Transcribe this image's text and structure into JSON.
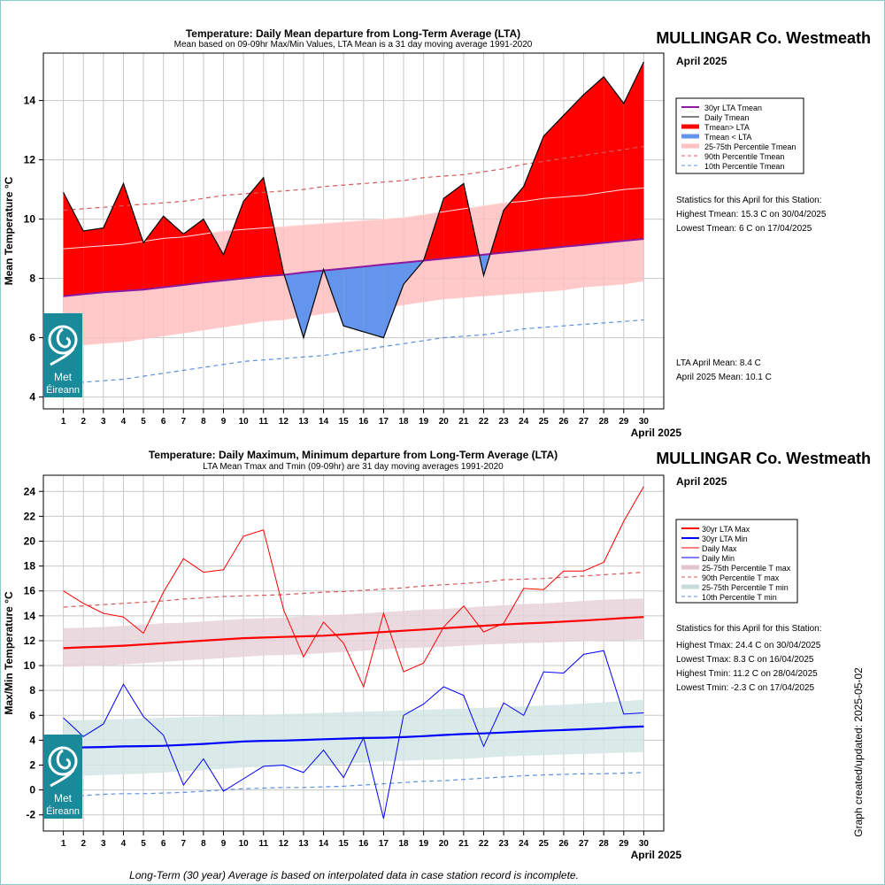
{
  "station": "MULLINGAR Co. Westmeath",
  "period": "April 2025",
  "logo_text": [
    "Met",
    "Éireann"
  ],
  "updated": "Graph created/updated:  2025-05-02",
  "footnote": "Long-Term (30 year) Average is based on interpolated data in case station record is incomplete.",
  "colors": {
    "above": "#ff0000",
    "below": "#6495ed",
    "lta_mean": "#8b1aa0",
    "pct_band_mean": "#ffc0c0",
    "pct90": "#d45a5a",
    "pct10": "#5b8fe0",
    "max": "#ff0000",
    "min": "#0000ff",
    "band_max": "#e8d2da",
    "band_min": "#d4e6e4",
    "logo": "#1a8a9a"
  },
  "top": {
    "title": "Temperature: Daily Mean departure from Long-Term Average (LTA)",
    "subtitle": "Mean based on 09-09hr Max/Min Values, LTA Mean is a 31 day moving average 1991-2020",
    "legend": [
      "30yr LTA Tmean",
      "Daily Tmean",
      "Tmean> LTA",
      "Tmean < LTA",
      "25-75th Percentile Tmean",
      "90th Percentile Tmean",
      "10th Percentile Tmean"
    ],
    "stats_heading": "Statistics for this April for this Station:",
    "stats": [
      "Highest Tmean: 15.3 C on 30/04/2025",
      "Lowest Tmean: 6 C on 17/04/2025"
    ],
    "means": [
      "LTA April Mean: 8.4 C",
      "April 2025 Mean: 10.1 C"
    ]
  },
  "bottom": {
    "title": "Temperature: Daily Maximum, Minimum departure from Long-Term Average (LTA)",
    "subtitle": "LTA Mean Tmax and Tmin (09-09hr) are 31 day moving averages 1991-2020",
    "legend": [
      "30yr LTA Max",
      "30yr LTA Min",
      "Daily Max",
      "Daily Min",
      "25-75th Percentile T max",
      "90th Percentile T max",
      "25-75th Percentile T min",
      "10th Percentile T min"
    ],
    "stats_heading": "Statistics for this April for this Station:",
    "stats": [
      "Highest Tmax: 24.4 C on 30/04/2025",
      "Lowest Tmax: 8.3 C on 16/04/2025",
      "Highest Tmin: 11.2 C on 28/04/2025",
      "Lowest Tmin: -2.3 C on 17/04/2025"
    ]
  },
  "chart_data": [
    {
      "type": "line",
      "title": "Temperature: Daily Mean departure from Long-Term Average (LTA)",
      "ylabel": "Mean Temperature °C",
      "xlabel": "April 2025",
      "ylim": [
        3.6,
        15.6
      ],
      "yticks": [
        4,
        6,
        8,
        10,
        12,
        14
      ],
      "x": [
        1,
        2,
        3,
        4,
        5,
        6,
        7,
        8,
        9,
        10,
        11,
        12,
        13,
        14,
        15,
        16,
        17,
        18,
        19,
        20,
        21,
        22,
        23,
        24,
        25,
        26,
        27,
        28,
        29,
        30
      ],
      "grid": true,
      "legend_position": "right",
      "series": [
        {
          "name": "Daily Tmean",
          "values": [
            10.9,
            9.6,
            9.7,
            11.2,
            9.2,
            10.1,
            9.5,
            10.0,
            8.8,
            10.6,
            11.4,
            8.2,
            6.0,
            8.3,
            6.4,
            6.2,
            6.0,
            7.8,
            8.6,
            10.7,
            11.2,
            8.1,
            10.3,
            11.1,
            12.8,
            13.5,
            14.2,
            14.8,
            13.9,
            15.3
          ]
        },
        {
          "name": "30yr LTA Tmean",
          "values": [
            7.4,
            7.47,
            7.53,
            7.58,
            7.62,
            7.7,
            7.78,
            7.86,
            7.93,
            8.0,
            8.07,
            8.12,
            8.2,
            8.27,
            8.33,
            8.4,
            8.47,
            8.53,
            8.6,
            8.67,
            8.73,
            8.8,
            8.87,
            8.93,
            9.0,
            9.07,
            9.13,
            9.2,
            9.27,
            9.33
          ]
        },
        {
          "name": "90th Percentile Tmean",
          "values": [
            10.3,
            10.35,
            10.4,
            10.45,
            10.5,
            10.55,
            10.6,
            10.7,
            10.8,
            10.85,
            10.9,
            10.95,
            11.0,
            11.1,
            11.15,
            11.2,
            11.25,
            11.3,
            11.4,
            11.45,
            11.5,
            11.6,
            11.7,
            11.85,
            11.95,
            12.05,
            12.15,
            12.25,
            12.35,
            12.45
          ]
        },
        {
          "name": "10th Percentile Tmean",
          "values": [
            4.45,
            4.5,
            4.55,
            4.6,
            4.7,
            4.8,
            4.9,
            5.0,
            5.1,
            5.2,
            5.25,
            5.3,
            5.35,
            5.4,
            5.5,
            5.6,
            5.7,
            5.8,
            5.9,
            6.0,
            6.05,
            6.1,
            6.2,
            6.3,
            6.35,
            6.4,
            6.45,
            6.5,
            6.55,
            6.6
          ]
        },
        {
          "name": "25-75th Percentile Tmean",
          "low": [
            5.7,
            5.75,
            5.8,
            5.85,
            5.95,
            6.05,
            6.15,
            6.25,
            6.35,
            6.45,
            6.55,
            6.6,
            6.7,
            6.8,
            6.9,
            6.95,
            7.0,
            7.1,
            7.2,
            7.3,
            7.35,
            7.4,
            7.45,
            7.5,
            7.55,
            7.6,
            7.7,
            7.75,
            7.8,
            7.9
          ],
          "high": [
            9.0,
            9.05,
            9.1,
            9.15,
            9.25,
            9.35,
            9.4,
            9.5,
            9.6,
            9.65,
            9.7,
            9.75,
            9.8,
            9.85,
            9.9,
            9.95,
            10.0,
            10.05,
            10.15,
            10.25,
            10.35,
            10.45,
            10.55,
            10.6,
            10.7,
            10.75,
            10.8,
            10.9,
            11.0,
            11.05
          ]
        }
      ]
    },
    {
      "type": "line",
      "title": "Temperature: Daily Maximum, Minimum departure from Long-Term Average (LTA)",
      "ylabel": "Max/Min Temperature °C",
      "xlabel": "April 2025",
      "ylim": [
        -3.3,
        25.3
      ],
      "yticks": [
        -2,
        0,
        2,
        4,
        6,
        8,
        10,
        12,
        14,
        16,
        18,
        20,
        22,
        24
      ],
      "x": [
        1,
        2,
        3,
        4,
        5,
        6,
        7,
        8,
        9,
        10,
        11,
        12,
        13,
        14,
        15,
        16,
        17,
        18,
        19,
        20,
        21,
        22,
        23,
        24,
        25,
        26,
        27,
        28,
        29,
        30
      ],
      "grid": true,
      "legend_position": "right",
      "series": [
        {
          "name": "Daily Max",
          "values": [
            16.0,
            15.0,
            14.2,
            13.9,
            12.6,
            15.9,
            18.6,
            17.5,
            17.7,
            20.4,
            20.9,
            14.5,
            10.7,
            13.5,
            11.8,
            8.3,
            14.2,
            9.5,
            10.2,
            13.1,
            14.8,
            12.7,
            13.4,
            16.2,
            16.1,
            17.6,
            17.6,
            18.3,
            21.6,
            24.4
          ]
        },
        {
          "name": "Daily Min",
          "values": [
            5.8,
            4.3,
            5.3,
            8.5,
            5.9,
            4.4,
            0.4,
            2.5,
            -0.1,
            0.9,
            1.9,
            2.0,
            1.4,
            3.2,
            1.0,
            4.2,
            -2.3,
            6.0,
            6.9,
            8.3,
            7.6,
            3.5,
            7.0,
            6.0,
            9.5,
            9.4,
            10.9,
            11.2,
            6.1,
            6.2
          ]
        },
        {
          "name": "30yr LTA Max",
          "values": [
            11.4,
            11.47,
            11.53,
            11.6,
            11.7,
            11.8,
            11.9,
            12.0,
            12.1,
            12.2,
            12.25,
            12.3,
            12.35,
            12.4,
            12.5,
            12.6,
            12.7,
            12.8,
            12.9,
            13.0,
            13.1,
            13.2,
            13.3,
            13.38,
            13.45,
            13.53,
            13.62,
            13.72,
            13.82,
            13.9
          ]
        },
        {
          "name": "30yr LTA Min",
          "values": [
            3.4,
            3.42,
            3.45,
            3.5,
            3.52,
            3.55,
            3.62,
            3.7,
            3.8,
            3.9,
            3.95,
            3.97,
            4.02,
            4.08,
            4.13,
            4.18,
            4.2,
            4.25,
            4.33,
            4.42,
            4.5,
            4.55,
            4.62,
            4.7,
            4.76,
            4.82,
            4.88,
            4.95,
            5.05,
            5.1
          ]
        },
        {
          "name": "90th Percentile T max",
          "values": [
            14.7,
            14.8,
            14.9,
            15.0,
            15.1,
            15.2,
            15.35,
            15.45,
            15.55,
            15.6,
            15.65,
            15.7,
            15.8,
            15.9,
            15.95,
            16.05,
            16.15,
            16.25,
            16.4,
            16.5,
            16.6,
            16.7,
            16.9,
            16.95,
            17.0,
            17.1,
            17.2,
            17.3,
            17.4,
            17.5
          ]
        },
        {
          "name": "10th Percentile T min",
          "values": [
            -0.5,
            -0.45,
            -0.35,
            -0.3,
            -0.3,
            -0.25,
            -0.2,
            -0.1,
            0.0,
            0.1,
            0.15,
            0.2,
            0.2,
            0.25,
            0.3,
            0.4,
            0.5,
            0.6,
            0.7,
            0.75,
            0.85,
            0.95,
            1.05,
            1.15,
            1.2,
            1.25,
            1.3,
            1.3,
            1.35,
            1.4
          ]
        },
        {
          "name": "25-75th Percentile T max",
          "low": [
            9.9,
            9.95,
            10.0,
            10.1,
            10.2,
            10.3,
            10.4,
            10.5,
            10.6,
            10.7,
            10.8,
            10.85,
            10.9,
            11.0,
            11.1,
            11.2,
            11.3,
            11.4,
            11.45,
            11.5,
            11.6,
            11.7,
            11.75,
            11.8,
            11.85,
            11.9,
            11.95,
            12.0,
            12.05,
            12.1
          ],
          "high": [
            13.0,
            13.05,
            13.1,
            13.2,
            13.3,
            13.4,
            13.45,
            13.55,
            13.65,
            13.75,
            13.8,
            13.85,
            13.95,
            14.05,
            14.1,
            14.2,
            14.3,
            14.4,
            14.5,
            14.55,
            14.65,
            14.75,
            14.85,
            14.95,
            15.0,
            15.1,
            15.2,
            15.3,
            15.35,
            15.4
          ]
        },
        {
          "name": "25-75th Percentile T min",
          "low": [
            1.1,
            1.15,
            1.2,
            1.25,
            1.3,
            1.4,
            1.5,
            1.6,
            1.7,
            1.8,
            1.85,
            1.9,
            1.95,
            2.0,
            2.1,
            2.2,
            2.3,
            2.35,
            2.4,
            2.45,
            2.5,
            2.6,
            2.7,
            2.75,
            2.8,
            2.85,
            2.9,
            2.95,
            3.0,
            3.05
          ],
          "high": [
            5.6,
            5.62,
            5.65,
            5.7,
            5.75,
            5.8,
            5.85,
            5.9,
            5.95,
            6.0,
            6.05,
            6.1,
            6.15,
            6.2,
            6.25,
            6.3,
            6.35,
            6.4,
            6.45,
            6.5,
            6.55,
            6.6,
            6.65,
            6.7,
            6.8,
            6.85,
            6.95,
            7.05,
            7.15,
            7.25
          ]
        }
      ]
    }
  ]
}
